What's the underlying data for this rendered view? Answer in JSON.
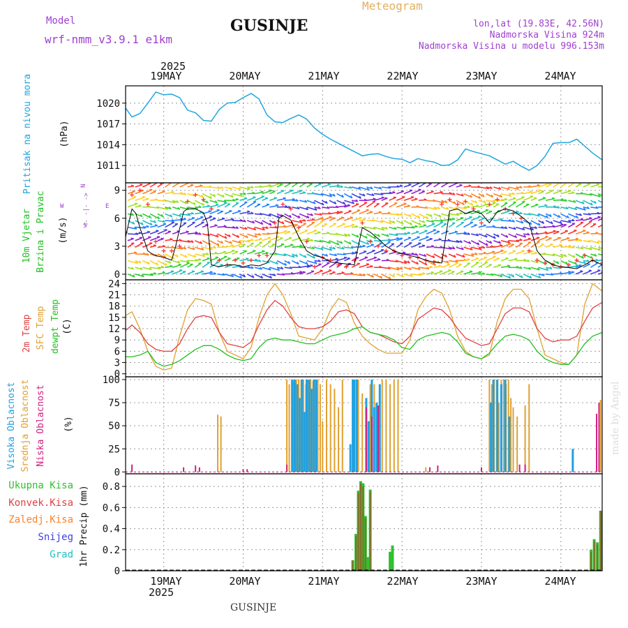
{
  "header": {
    "model_label": "Model",
    "model_name": "wrf-nmm_v3.9.1 e1km",
    "title": "GUSINJE",
    "subtitle": "Meteogram",
    "coords": "lon,lat (19.83E, 42.56N)",
    "elevation": "Nadmorska Visina 924m",
    "model_elevation": "Nadmorska Visina u modelu 996.153m",
    "year_top": "2025",
    "year_bottom": "2025",
    "footer": "GUSINJE",
    "watermark": "made by Angel"
  },
  "colors": {
    "pressure": "#1fa6e0",
    "wind_speed": "#000000",
    "wind_gust": "#ff3030",
    "temp_2m": "#e04040",
    "temp_sfc": "#e0a030",
    "temp_dew": "#20c020",
    "cloud_high": "#20a0e0",
    "cloud_mid": "#e0a030",
    "cloud_low": "#d02080",
    "rain_total": "#30c030",
    "rain_conv": "#e04040",
    "rain_frozen": "#ff8020",
    "snow": "#4040e0",
    "graupel": "#20c0c0",
    "purple_text": "#a040d0"
  },
  "chart_data": [
    {
      "type": "line",
      "panel": "pressure",
      "ylabel": "Pritisak na nivou mora",
      "unit": "(hPa)",
      "ylim": [
        1008.5,
        1022.5
      ],
      "yticks": [
        1011,
        1014,
        1017,
        1020
      ],
      "xlim": [
        18.52,
        24.52
      ],
      "x_ticks": [
        "19MAY",
        "20MAY",
        "21MAY",
        "22MAY",
        "23MAY",
        "24MAY"
      ],
      "grid": true,
      "x": [
        18.52,
        18.6,
        18.7,
        18.8,
        18.9,
        19.0,
        19.1,
        19.2,
        19.3,
        19.4,
        19.5,
        19.6,
        19.7,
        19.8,
        19.9,
        20.0,
        20.1,
        20.2,
        20.3,
        20.4,
        20.5,
        20.6,
        20.7,
        20.8,
        20.9,
        21.0,
        21.1,
        21.2,
        21.3,
        21.4,
        21.5,
        21.6,
        21.7,
        21.8,
        21.9,
        22.0,
        22.1,
        22.2,
        22.3,
        22.4,
        22.5,
        22.6,
        22.7,
        22.8,
        22.9,
        23.0,
        23.1,
        23.2,
        23.3,
        23.4,
        23.5,
        23.6,
        23.7,
        23.8,
        23.9,
        24.0,
        24.1,
        24.2,
        24.3,
        24.4,
        24.52
      ],
      "y": [
        1019.3,
        1018.0,
        1018.5,
        1020.0,
        1021.6,
        1021.2,
        1021.3,
        1020.8,
        1019.0,
        1018.6,
        1017.5,
        1017.4,
        1019.1,
        1020.0,
        1020.1,
        1020.8,
        1021.4,
        1020.6,
        1018.3,
        1017.3,
        1017.2,
        1017.8,
        1018.3,
        1017.7,
        1016.4,
        1015.5,
        1014.8,
        1014.2,
        1013.6,
        1013.0,
        1012.4,
        1012.6,
        1012.7,
        1012.3,
        1012.0,
        1011.9,
        1011.4,
        1012.0,
        1011.7,
        1011.5,
        1011.0,
        1011.1,
        1011.8,
        1013.4,
        1013.0,
        1012.7,
        1012.4,
        1011.8,
        1011.2,
        1011.6,
        1010.9,
        1010.3,
        1011.0,
        1012.3,
        1014.2,
        1014.3,
        1014.3,
        1014.8,
        1013.8,
        1012.8,
        1011.8
      ]
    },
    {
      "type": "line",
      "panel": "wind",
      "ylabel_line1": "10m Vjetar",
      "ylabel_line2": "Brzina i Pravac",
      "unit": "(m/s)",
      "direction_legend": [
        "N",
        "W",
        "E",
        "S"
      ],
      "direction_arrows": "<- -|- ->",
      "ylim": [
        -0.6,
        9.8
      ],
      "yticks": [
        0,
        3,
        6,
        9
      ],
      "xlim": [
        18.52,
        24.52
      ],
      "grid": true,
      "series": [
        {
          "name": "speed",
          "x": [
            18.52,
            18.6,
            18.65,
            18.7,
            18.8,
            18.85,
            18.9,
            19.0,
            19.1,
            19.15,
            19.25,
            19.3,
            19.4,
            19.5,
            19.55,
            19.6,
            19.7,
            19.8,
            19.9,
            20.0,
            20.1,
            20.2,
            20.3,
            20.4,
            20.45,
            20.5,
            20.6,
            20.7,
            20.8,
            20.9,
            21.0,
            21.1,
            21.2,
            21.3,
            21.4,
            21.5,
            21.6,
            21.7,
            21.8,
            21.9,
            22.0,
            22.1,
            22.2,
            22.3,
            22.4,
            22.5,
            22.6,
            22.7,
            22.8,
            22.9,
            23.0,
            23.1,
            23.2,
            23.3,
            23.4,
            23.5,
            23.6,
            23.7,
            23.8,
            23.9,
            24.0,
            24.1,
            24.2,
            24.3,
            24.4,
            24.52
          ],
          "y": [
            4.0,
            7.0,
            6.5,
            5.0,
            2.5,
            2.2,
            2.0,
            1.8,
            1.5,
            3.0,
            6.7,
            7.0,
            7.0,
            6.6,
            5.5,
            1.0,
            0.8,
            1.0,
            1.0,
            0.8,
            1.0,
            0.9,
            1.2,
            2.5,
            6.0,
            6.3,
            5.8,
            4.0,
            2.5,
            2.0,
            1.8,
            1.3,
            1.2,
            1.1,
            1.0,
            5.0,
            4.5,
            3.8,
            3.0,
            2.5,
            2.2,
            2.0,
            1.8,
            1.5,
            1.3,
            1.2,
            6.8,
            7.0,
            6.5,
            6.8,
            6.5,
            5.5,
            6.7,
            7.0,
            6.8,
            6.2,
            5.5,
            2.5,
            1.5,
            1.0,
            0.8,
            0.7,
            0.6,
            1.0,
            1.5,
            1.0
          ]
        },
        {
          "name": "gust",
          "x": [
            18.52,
            18.6,
            18.7,
            18.8,
            18.9,
            19.0,
            19.1,
            19.2,
            19.3,
            19.4,
            19.5,
            19.6,
            19.7,
            19.8,
            19.9,
            20.0,
            20.1,
            20.2,
            20.3,
            20.4,
            20.5,
            20.6,
            20.7,
            20.8,
            20.9,
            21.0,
            21.1,
            21.2,
            21.3,
            21.4,
            21.5,
            21.6,
            21.7,
            21.8,
            21.9,
            22.0,
            22.1,
            22.2,
            22.3,
            22.4,
            22.5,
            22.6,
            22.7,
            22.8,
            22.9,
            23.0,
            23.1,
            23.2,
            23.3,
            23.4,
            23.5,
            23.6,
            23.7,
            23.8,
            23.9,
            24.0,
            24.1,
            24.2,
            24.3,
            24.4,
            24.52
          ],
          "y": [
            4.5,
            8.5,
            9.0,
            7.5,
            3.5,
            2.5,
            2.5,
            3.0,
            7.8,
            8.5,
            8.0,
            7.0,
            1.5,
            1.0,
            1.5,
            1.2,
            1.5,
            2.0,
            2.0,
            5.5,
            7.5,
            7.0,
            5.0,
            3.5,
            0.8,
            1.8,
            1.5,
            1.0,
            0.8,
            1.5,
            5.5,
            3.5,
            3.0,
            2.5,
            2.5,
            2.0,
            1.8,
            1.8,
            1.5,
            1.3,
            7.5,
            8.0,
            7.5,
            7.8,
            7.0,
            5.5,
            7.5,
            8.0,
            7.0,
            6.5,
            6.0,
            2.5,
            1.5,
            1.2,
            1.0,
            0.8,
            1.0,
            1.5,
            2.0,
            1.5,
            1.2
          ]
        }
      ]
    },
    {
      "type": "line",
      "panel": "temperature",
      "ylabel_line1": "2m Temp",
      "ylabel_line2": "SFC Temp",
      "ylabel_line3": "dewpt Temp",
      "unit": "(C)",
      "ylim": [
        -0.8,
        25
      ],
      "yticks": [
        0,
        3,
        6,
        9,
        12,
        15,
        18,
        21,
        24
      ],
      "xlim": [
        18.52,
        24.52
      ],
      "grid": true,
      "x": [
        18.52,
        18.6,
        18.7,
        18.8,
        18.9,
        19.0,
        19.1,
        19.2,
        19.3,
        19.4,
        19.5,
        19.6,
        19.7,
        19.8,
        19.9,
        20.0,
        20.1,
        20.2,
        20.3,
        20.4,
        20.5,
        20.6,
        20.7,
        20.8,
        20.9,
        21.0,
        21.1,
        21.2,
        21.3,
        21.4,
        21.5,
        21.6,
        21.7,
        21.8,
        21.9,
        22.0,
        22.1,
        22.2,
        22.3,
        22.4,
        22.5,
        22.6,
        22.7,
        22.8,
        22.9,
        23.0,
        23.1,
        23.2,
        23.3,
        23.4,
        23.5,
        23.6,
        23.7,
        23.8,
        23.9,
        24.0,
        24.1,
        24.2,
        24.3,
        24.4,
        24.52
      ],
      "series": [
        {
          "name": "2m Temp",
          "y": [
            11.5,
            13.0,
            11.0,
            8.0,
            6.5,
            6.0,
            6.0,
            8.0,
            12.0,
            15.0,
            15.5,
            15.0,
            11.0,
            8.0,
            7.5,
            7.0,
            8.5,
            13.0,
            17.0,
            19.5,
            18.0,
            15.0,
            12.5,
            12.0,
            12.0,
            12.5,
            14.0,
            16.5,
            17.0,
            16.0,
            12.5,
            11.0,
            10.5,
            9.5,
            8.5,
            8.0,
            10.0,
            14.5,
            16.0,
            17.5,
            17.0,
            15.0,
            12.0,
            9.5,
            8.5,
            7.5,
            8.0,
            12.0,
            16.0,
            17.5,
            17.5,
            16.5,
            12.0,
            9.5,
            8.5,
            9.0,
            9.0,
            10.0,
            14.0,
            17.5,
            19.0
          ]
        },
        {
          "name": "SFC Temp",
          "y": [
            15.5,
            16.5,
            12.0,
            6.0,
            2.0,
            1.0,
            1.5,
            10.0,
            17.0,
            20.0,
            19.5,
            18.5,
            11.0,
            6.0,
            5.0,
            4.0,
            7.0,
            15.0,
            21.0,
            24.0,
            21.0,
            16.0,
            10.0,
            9.5,
            9.0,
            12.0,
            17.0,
            20.0,
            19.0,
            13.5,
            10.0,
            8.0,
            6.5,
            5.5,
            5.5,
            5.5,
            9.0,
            17.0,
            20.5,
            22.5,
            21.5,
            17.0,
            10.0,
            6.0,
            4.5,
            4.0,
            5.0,
            14.0,
            20.0,
            22.5,
            22.5,
            20.0,
            12.0,
            5.0,
            4.0,
            3.0,
            2.5,
            5.0,
            18.5,
            24.0,
            22.0
          ]
        },
        {
          "name": "dewpt Temp",
          "y": [
            4.5,
            4.5,
            5.0,
            6.0,
            3.0,
            2.0,
            2.5,
            3.5,
            5.0,
            6.5,
            7.5,
            7.5,
            6.5,
            5.0,
            4.0,
            3.5,
            4.0,
            7.0,
            9.0,
            9.5,
            9.0,
            9.0,
            8.5,
            8.0,
            8.0,
            9.0,
            10.0,
            10.5,
            11.0,
            12.0,
            12.5,
            11.0,
            10.5,
            10.0,
            9.0,
            7.0,
            6.5,
            9.0,
            10.0,
            10.5,
            11.0,
            10.5,
            8.5,
            5.5,
            4.5,
            4.0,
            5.5,
            8.0,
            10.0,
            10.5,
            10.0,
            9.0,
            6.0,
            4.0,
            3.0,
            2.5,
            2.5,
            5.0,
            8.0,
            10.0,
            11.0
          ]
        }
      ]
    },
    {
      "type": "bar",
      "panel": "clouds",
      "ylabel_line1": "Visoka Oblacnost",
      "ylabel_line2": "Srednja Oblacnost",
      "ylabel_line3": "Niska Oblacnost",
      "unit": "(%)",
      "ylim": [
        -2,
        103
      ],
      "yticks": [
        0,
        25,
        50,
        75,
        100
      ],
      "xlim": [
        18.52,
        24.52
      ],
      "grid": true,
      "series": [
        {
          "name": "high",
          "x": [
            20.62,
            20.65,
            20.68,
            20.71,
            20.74,
            20.77,
            20.8,
            20.83,
            20.86,
            20.89,
            20.92,
            21.35,
            21.38,
            21.4,
            21.43,
            21.55,
            21.58,
            21.62,
            21.65,
            21.68,
            21.72,
            23.12,
            23.15,
            23.2,
            23.25,
            23.3,
            23.35,
            24.15
          ],
          "y": [
            100,
            100,
            95,
            80,
            100,
            65,
            100,
            100,
            90,
            100,
            100,
            30,
            100,
            100,
            100,
            80,
            55,
            100,
            70,
            75,
            95,
            75,
            100,
            100,
            95,
            100,
            60,
            25
          ]
        },
        {
          "name": "mid",
          "x": [
            19.68,
            19.72,
            20.55,
            20.58,
            20.61,
            20.64,
            20.67,
            20.7,
            20.73,
            20.76,
            20.79,
            20.82,
            20.85,
            20.88,
            20.91,
            20.94,
            20.97,
            21.0,
            21.05,
            21.1,
            21.15,
            21.2,
            21.25,
            21.4,
            21.45,
            21.5,
            21.55,
            21.6,
            21.65,
            21.75,
            21.8,
            21.85,
            21.9,
            21.95,
            22.3,
            22.35,
            23.1,
            23.13,
            23.16,
            23.19,
            23.22,
            23.25,
            23.28,
            23.31,
            23.34,
            23.37,
            23.4,
            23.45,
            23.55,
            23.6,
            24.5
          ],
          "y": [
            62,
            60,
            100,
            95,
            100,
            98,
            100,
            100,
            100,
            100,
            95,
            100,
            100,
            98,
            100,
            100,
            95,
            55,
            100,
            95,
            90,
            70,
            100,
            100,
            100,
            85,
            65,
            95,
            95,
            100,
            100,
            95,
            100,
            100,
            5,
            5,
            100,
            95,
            100,
            100,
            75,
            100,
            100,
            95,
            100,
            80,
            70,
            60,
            72,
            95,
            78
          ]
        },
        {
          "name": "low",
          "x": [
            18.6,
            19.25,
            19.4,
            19.45,
            20.0,
            20.05,
            20.55,
            21.55,
            21.62,
            21.7,
            22.35,
            22.45,
            23.0,
            23.48,
            23.55,
            24.45,
            24.48
          ],
          "y": [
            8,
            5,
            7,
            5,
            3,
            3,
            8,
            70,
            60,
            72,
            5,
            7,
            5,
            8,
            8,
            63,
            75
          ]
        }
      ]
    },
    {
      "type": "bar",
      "panel": "precipitation",
      "legend": [
        "Ukupna Kisa",
        "Konvek.Kisa",
        "Zaledj.Kisa",
        "Snijeg",
        "Grad"
      ],
      "ylabel": "1hr Precip (mm)",
      "ylim": [
        0,
        0.92
      ],
      "yticks": [
        0,
        0.2,
        0.4,
        0.6,
        0.8
      ],
      "xlim": [
        18.52,
        24.52
      ],
      "x_ticks": [
        "19MAY",
        "20MAY",
        "21MAY",
        "22MAY",
        "23MAY",
        "24MAY"
      ],
      "grid": true,
      "series": [
        {
          "name": "Ukupna Kisa",
          "x": [
            21.38,
            21.42,
            21.45,
            21.48,
            21.51,
            21.54,
            21.57,
            21.6,
            21.85,
            21.88,
            24.38,
            24.42,
            24.46,
            24.5
          ],
          "y": [
            0.1,
            0.35,
            0.76,
            0.85,
            0.83,
            0.52,
            0.13,
            0.77,
            0.18,
            0.24,
            0.2,
            0.3,
            0.27,
            0.57
          ]
        },
        {
          "name": "Konvek.Kisa",
          "x": [
            21.38,
            21.42,
            21.45,
            21.48,
            21.51,
            21.54,
            21.6,
            24.38,
            24.42,
            24.46,
            24.5
          ],
          "y": [
            0.1,
            0.33,
            0.74,
            0.83,
            0.8,
            0.5,
            0.75,
            0.18,
            0.28,
            0.25,
            0.57
          ]
        }
      ]
    }
  ]
}
